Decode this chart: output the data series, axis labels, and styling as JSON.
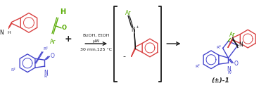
{
  "background": "#ffffff",
  "color_red": "#d94040",
  "color_blue": "#4444cc",
  "color_green": "#55aa00",
  "color_black": "#1a1a1a",
  "conditions_line1": "BzOH, EtOH",
  "conditions_line2": "μW",
  "conditions_line3": "30 min,125 °C",
  "product_label": "(±)-1"
}
